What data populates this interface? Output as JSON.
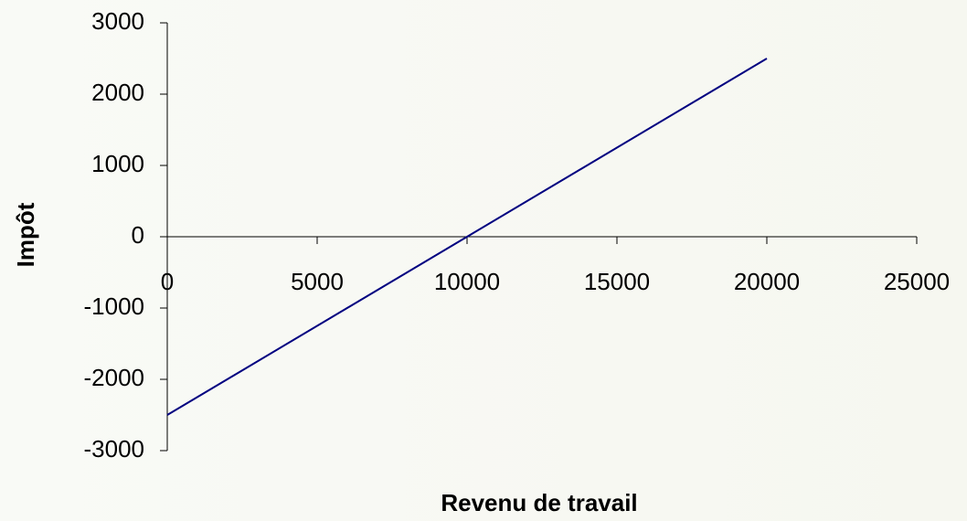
{
  "chart_data": {
    "type": "line",
    "x_label": "Revenu de travail",
    "y_label": "Impôt",
    "x": [
      0,
      20000
    ],
    "series": [
      {
        "name": "Impôt",
        "color": "#000080",
        "values": [
          -2500,
          2500
        ]
      }
    ],
    "xlim": [
      0,
      25000
    ],
    "xticks": [
      0,
      5000,
      10000,
      15000,
      20000,
      25000
    ],
    "ylim": [
      -3000,
      3000
    ],
    "yticks": [
      -3000,
      -2000,
      -1000,
      0,
      1000,
      2000,
      3000
    ],
    "grid": false
  }
}
